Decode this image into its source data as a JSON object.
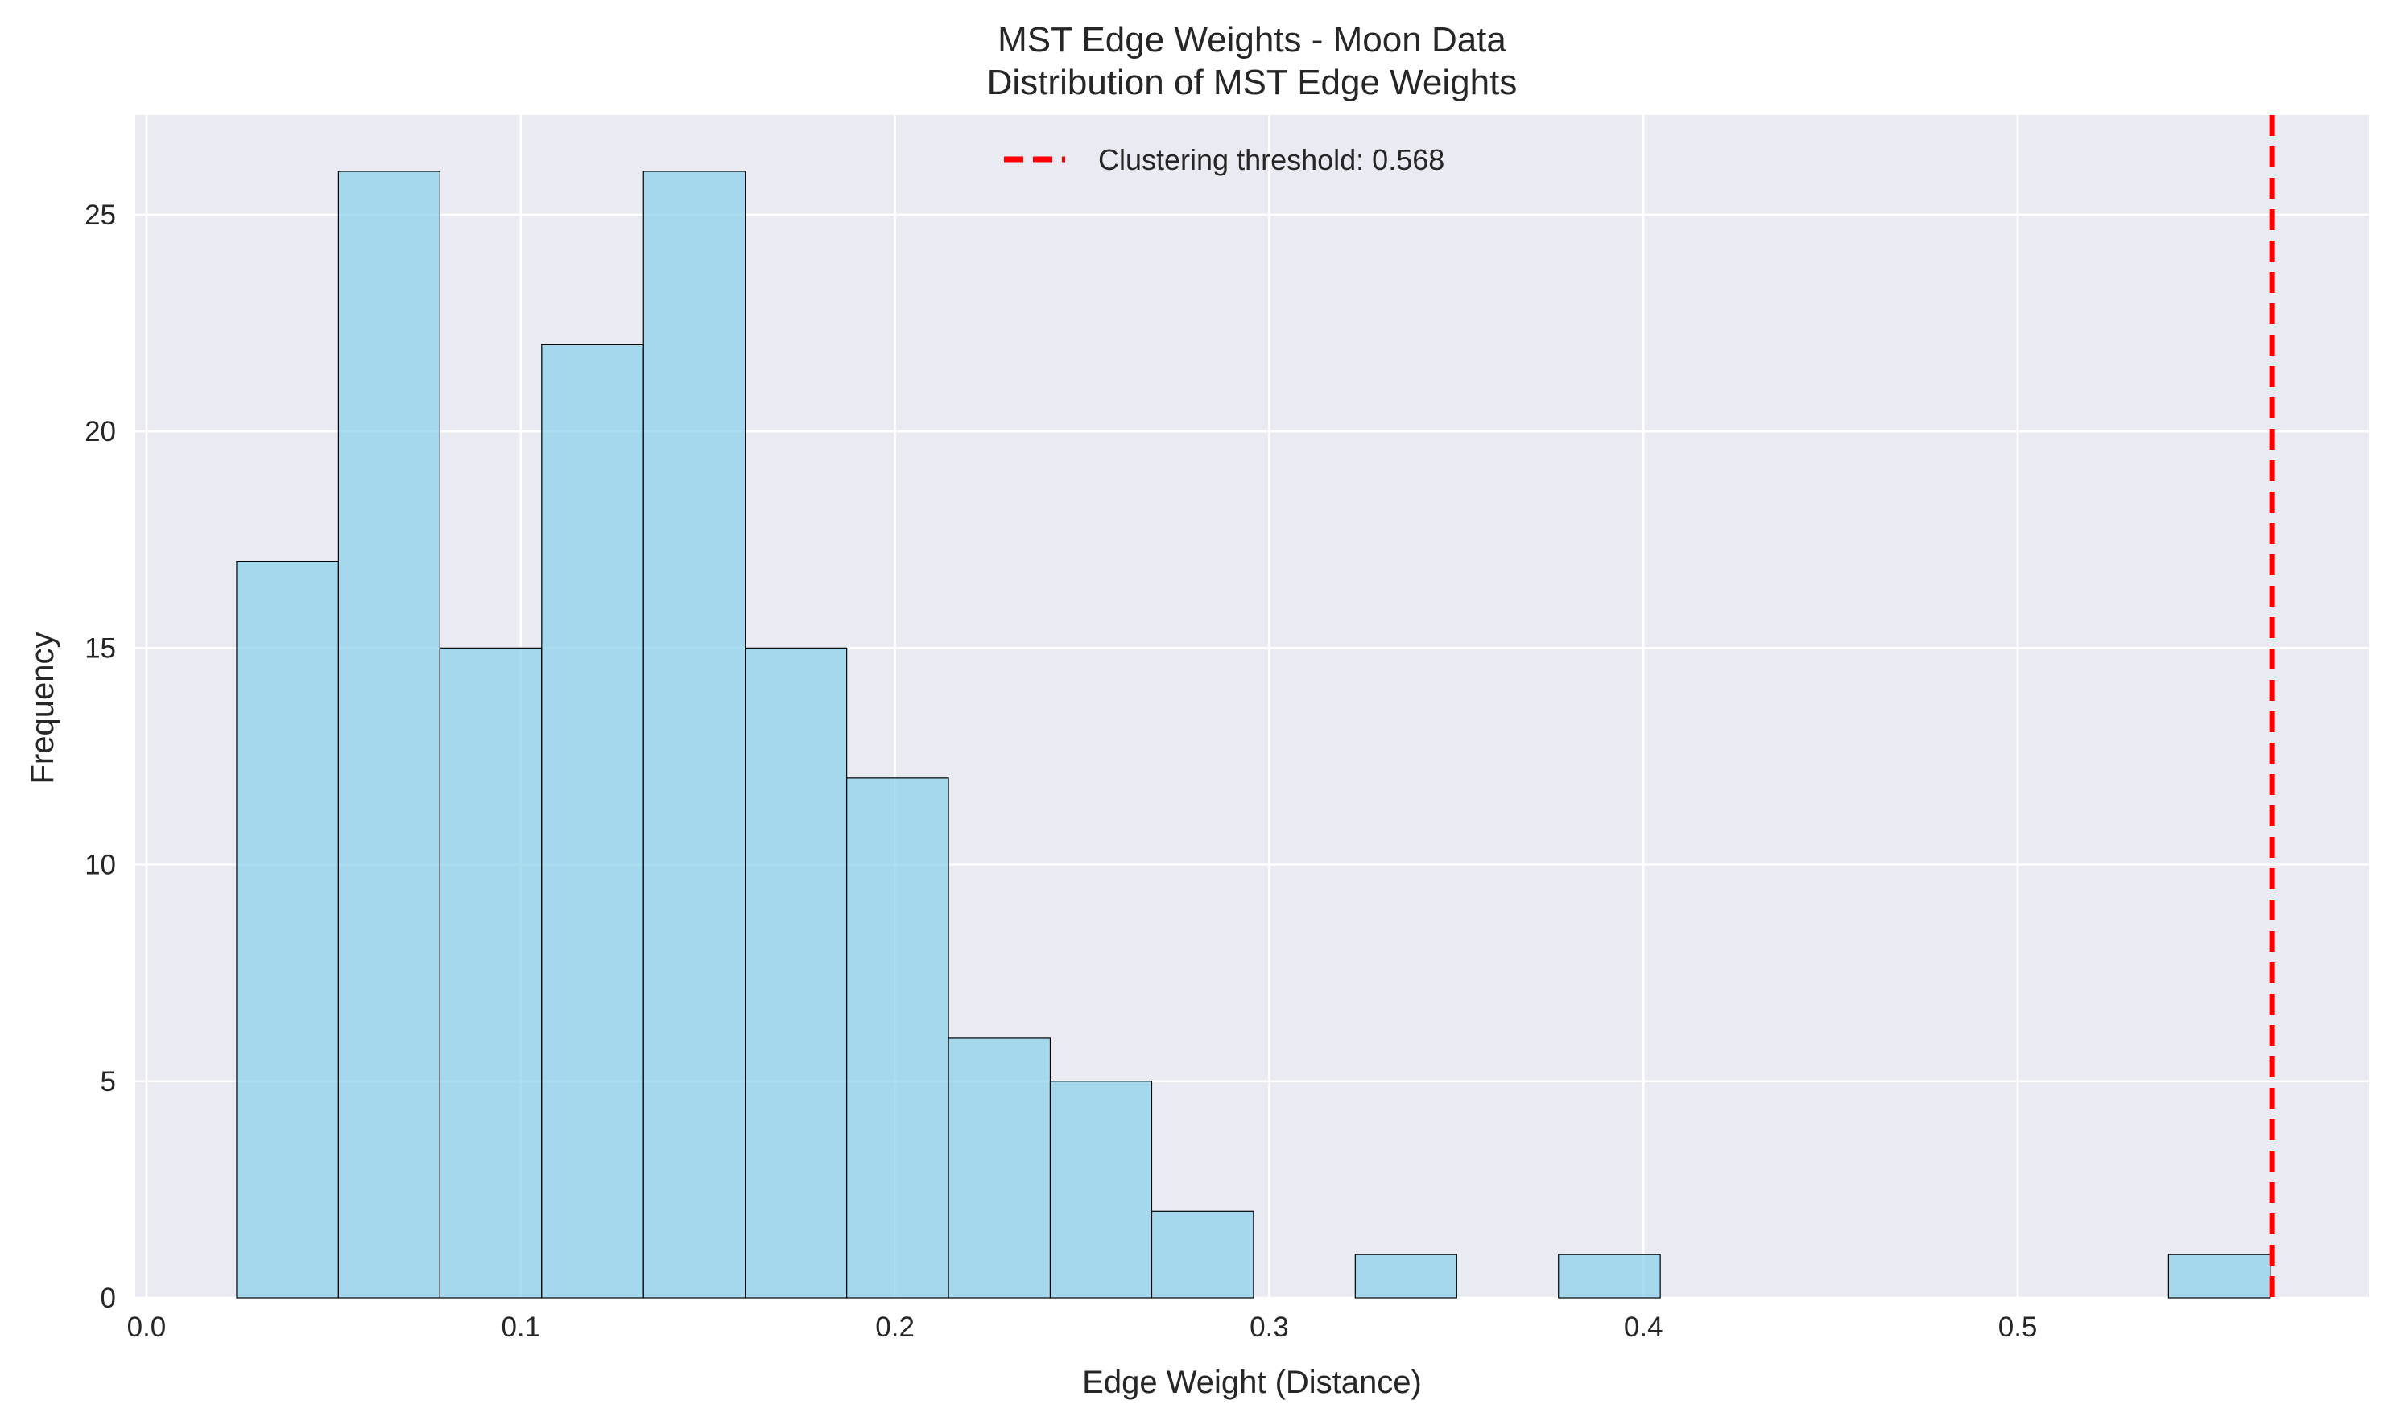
{
  "chart_data": {
    "type": "bar",
    "title": "MST Edge Weights - Moon Data",
    "subtitle": "Distribution of MST Edge Weights",
    "xlabel": "Edge Weight (Distance)",
    "ylabel": "Frequency",
    "xlim": [
      -0.003,
      0.594
    ],
    "ylim": [
      0,
      27.3
    ],
    "x_ticks": [
      {
        "value": 0.0,
        "label": "0.0"
      },
      {
        "value": 0.1,
        "label": "0.1"
      },
      {
        "value": 0.2,
        "label": "0.2"
      },
      {
        "value": 0.3,
        "label": "0.3"
      },
      {
        "value": 0.4,
        "label": "0.4"
      },
      {
        "value": 0.5,
        "label": "0.5"
      }
    ],
    "y_ticks": [
      {
        "value": 0,
        "label": "0"
      },
      {
        "value": 5,
        "label": "5"
      },
      {
        "value": 10,
        "label": "10"
      },
      {
        "value": 15,
        "label": "15"
      },
      {
        "value": 20,
        "label": "20"
      },
      {
        "value": 25,
        "label": "25"
      }
    ],
    "bins": [
      {
        "x0": 0.0241,
        "x1": 0.0513,
        "count": 17
      },
      {
        "x0": 0.0513,
        "x1": 0.0784,
        "count": 26
      },
      {
        "x0": 0.0784,
        "x1": 0.1056,
        "count": 15
      },
      {
        "x0": 0.1056,
        "x1": 0.1328,
        "count": 22
      },
      {
        "x0": 0.1328,
        "x1": 0.16,
        "count": 26
      },
      {
        "x0": 0.16,
        "x1": 0.1871,
        "count": 15
      },
      {
        "x0": 0.1871,
        "x1": 0.2143,
        "count": 12
      },
      {
        "x0": 0.2143,
        "x1": 0.2415,
        "count": 6
      },
      {
        "x0": 0.2415,
        "x1": 0.2686,
        "count": 5
      },
      {
        "x0": 0.2686,
        "x1": 0.2958,
        "count": 2
      },
      {
        "x0": 0.2958,
        "x1": 0.323,
        "count": 0
      },
      {
        "x0": 0.323,
        "x1": 0.3501,
        "count": 1
      },
      {
        "x0": 0.3501,
        "x1": 0.3773,
        "count": 0
      },
      {
        "x0": 0.3773,
        "x1": 0.4045,
        "count": 1
      },
      {
        "x0": 0.4045,
        "x1": 0.4317,
        "count": 0
      },
      {
        "x0": 0.4317,
        "x1": 0.4588,
        "count": 0
      },
      {
        "x0": 0.4588,
        "x1": 0.486,
        "count": 0
      },
      {
        "x0": 0.486,
        "x1": 0.5132,
        "count": 0
      },
      {
        "x0": 0.5132,
        "x1": 0.5403,
        "count": 0
      },
      {
        "x0": 0.5403,
        "x1": 0.5675,
        "count": 1
      }
    ],
    "threshold": {
      "value": 0.568,
      "label": "Clustering threshold: 0.568"
    },
    "grid": true,
    "legend_position": "top-center",
    "colors": {
      "bar_fill": "#87ceeb",
      "bar_edge": "#000000",
      "threshold": "#ff0000",
      "plot_background": "#eaeaf2",
      "grid": "#ffffff"
    }
  }
}
